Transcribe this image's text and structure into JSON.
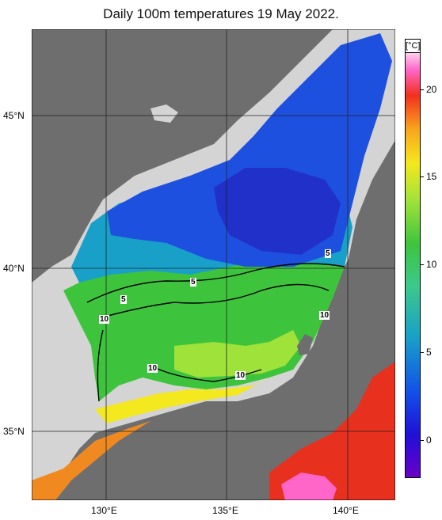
{
  "title": "Daily 100m temperatures 19 May 2022.",
  "colorbar": {
    "unit": "[°C]",
    "ticks": [
      "20",
      "15",
      "10",
      "5",
      "0"
    ]
  },
  "axes": {
    "lat_labels": [
      "45°N",
      "40°N",
      "35°N"
    ],
    "lon_labels": [
      "130°E",
      "135°E",
      "140°E"
    ]
  },
  "contour_labels": [
    "5",
    "5",
    "5",
    "10",
    "10",
    "10",
    "10"
  ],
  "colors": {
    "land": "#6e6e6e",
    "shelf": "#d0d0d0",
    "cold": "#1e3ed6",
    "cool": "#19a0c8",
    "mid": "#3ec43c",
    "warm": "#f4e81e",
    "hot": "#f2301e",
    "hottest": "#ff66c8"
  }
}
